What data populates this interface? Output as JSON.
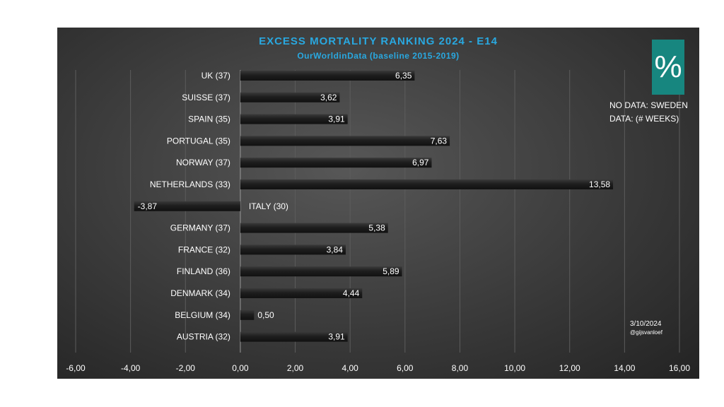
{
  "chart_data": {
    "type": "bar",
    "orientation": "horizontal",
    "title": "EXCESS MORTALITY RANKING 2024 - E14",
    "subtitle": "OurWorldinData (baseline 2015-2019)",
    "categories": [
      "UK (37)",
      "SUISSE (37)",
      "SPAIN (35)",
      "PORTUGAL (35)",
      "NORWAY (37)",
      "NETHERLANDS (33)",
      "ITALY (30)",
      "GERMANY (37)",
      "FRANCE (32)",
      "FINLAND (36)",
      "DENMARK (34)",
      "BELGIUM (34)",
      "AUSTRIA (32)"
    ],
    "values": [
      6.35,
      3.62,
      3.91,
      7.63,
      6.97,
      13.58,
      -3.87,
      5.38,
      3.84,
      5.89,
      4.44,
      0.5,
      3.91
    ],
    "value_labels": [
      "6,35",
      "3,62",
      "3,91",
      "7,63",
      "6,97",
      "13,58",
      "-3,87",
      "5,38",
      "3,84",
      "5,89",
      "4,44",
      "0,50",
      "3,91"
    ],
    "xlim": [
      -6,
      16
    ],
    "x_ticks": [
      "-6,00",
      "-4,00",
      "-2,00",
      "0,00",
      "2,00",
      "4,00",
      "6,00",
      "8,00",
      "10,00",
      "12,00",
      "14,00",
      "16,00"
    ],
    "grid": true,
    "legend": "none",
    "colors": {
      "bar": "#1c1c1c",
      "title": "#29a8e0",
      "badge": "#17867f",
      "text": "#ffffff"
    }
  },
  "badge": {
    "symbol": "%"
  },
  "notes": {
    "no_data": "NO DATA: SWEDEN",
    "data": "DATA: (# WEEKS)"
  },
  "date": "3/10/2024",
  "credit": "@gijsvanloef"
}
